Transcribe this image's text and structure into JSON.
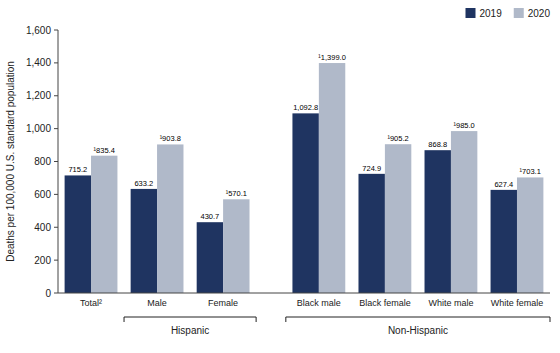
{
  "chart_data": {
    "type": "bar",
    "categories": [
      "Total²",
      "Male",
      "Female",
      "Black male",
      "Black female",
      "White male",
      "White female"
    ],
    "series": [
      {
        "name": "2019",
        "color": "#1f3461",
        "values": [
          715.2,
          633.2,
          430.7,
          1092.8,
          724.9,
          868.8,
          627.4
        ],
        "value_labels": [
          "715.2",
          "633.2",
          "430.7",
          "1,092.8",
          "724.9",
          "868.8",
          "627.4"
        ]
      },
      {
        "name": "2020",
        "color": "#b0b9c9",
        "values": [
          835.4,
          903.8,
          570.1,
          1399.0,
          905.2,
          985.0,
          703.1
        ],
        "value_labels": [
          "¹835.4",
          "¹903.8",
          "¹570.1",
          "¹1,399.0",
          "¹905.2",
          "¹985.0",
          "¹703.1"
        ]
      }
    ],
    "ylabel": "Deaths per 100,000 U.S. standard population",
    "ylim": [
      0,
      1600
    ],
    "yticks": [
      0,
      200,
      400,
      600,
      800,
      {
        "value": 1000,
        "label": "1,000"
      },
      {
        "value": 1200,
        "label": "1,200"
      },
      {
        "value": 1400,
        "label": "1,400"
      },
      {
        "value": 1600,
        "label": "1,600"
      }
    ],
    "annotations": [
      {
        "text": "Hispanic",
        "categories": [
          "Male",
          "Female"
        ]
      },
      {
        "text": "Non-Hispanic",
        "categories": [
          "Black male",
          "Black female",
          "White male",
          "White female"
        ]
      }
    ],
    "legend": "upper right",
    "data_labels": true,
    "grid": false
  }
}
